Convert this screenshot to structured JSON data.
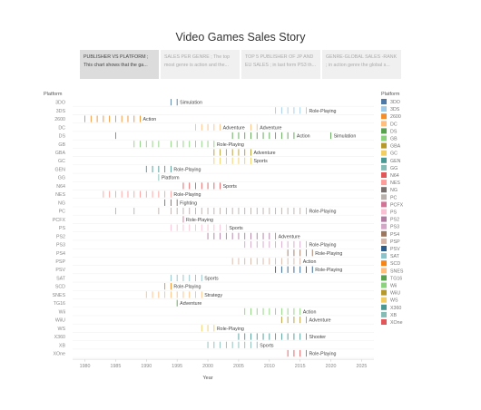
{
  "story": {
    "title": "Video Games Sales Story",
    "tabs": [
      {
        "line1": "PUBLISHER VS PLATFORM ;",
        "line2": "This chart shows that the ga...",
        "active": true
      },
      {
        "line1": "SALES PER GENRE ; The top",
        "line2": "most genre is action and the...",
        "active": false
      },
      {
        "line1": "TOP 5 PUBLISHER OF JP AND",
        "line2": "EU SALES ; in last form PS3 th...",
        "active": false
      },
      {
        "line1": "GENRE-GLOBAL SALES -RANK",
        "line2": "; in action genre the global s...",
        "active": false
      }
    ]
  },
  "chart_data": {
    "type": "strip",
    "ylabel": "Platform",
    "xlabel": "Year",
    "xlim": [
      1978,
      2027
    ],
    "xticks": [
      1980,
      1985,
      1990,
      1995,
      2000,
      2005,
      2010,
      2015,
      2020,
      2025
    ],
    "legend_title": "Platform",
    "rows": [
      {
        "platform": "3DO",
        "color": "#4e79a7",
        "years": [
          1994,
          1995
        ],
        "label_year": 1995,
        "label": "Simulation"
      },
      {
        "platform": "3DS",
        "color": "#a0cbe8",
        "years": [
          2011,
          2012,
          2013,
          2014,
          2015,
          2016
        ],
        "label_year": 2016,
        "label": "Role-Playing"
      },
      {
        "platform": "2600",
        "color": "#f28e2b",
        "years": [
          1980,
          1981,
          1982,
          1983,
          1984,
          1985,
          1986,
          1987,
          1988,
          1989
        ],
        "label_year": 1989,
        "label": "Action"
      },
      {
        "platform": "DC",
        "color": "#ffbe7d",
        "years": [
          1998,
          1999,
          2000,
          2001,
          2002,
          2007,
          2008
        ],
        "label_year": 2002,
        "label": "Adventure",
        "label2_year": 2008,
        "label2": "Adventure"
      },
      {
        "platform": "DS",
        "color": "#59a14f",
        "years": [
          1985,
          2004,
          2005,
          2006,
          2007,
          2008,
          2009,
          2010,
          2011,
          2012,
          2013,
          2014,
          2020
        ],
        "label_year": 2014,
        "label": "Action",
        "label2_year": 2020,
        "label2": "Simulation"
      },
      {
        "platform": "GB",
        "color": "#8cd17d",
        "years": [
          1988,
          1989,
          1990,
          1991,
          1992,
          1994,
          1995,
          1996,
          1997,
          1998,
          1999,
          2000,
          2001
        ],
        "label_year": 2001,
        "label": "Role-Playing"
      },
      {
        "platform": "GBA",
        "color": "#b6992d",
        "years": [
          2001,
          2002,
          2003,
          2004,
          2005,
          2006,
          2007
        ],
        "label_year": 2007,
        "label": "Adventure"
      },
      {
        "platform": "GC",
        "color": "#f1ce63",
        "years": [
          2001,
          2002,
          2003,
          2004,
          2005,
          2006,
          2007
        ],
        "label_year": 2007,
        "label": "Sports"
      },
      {
        "platform": "GEN",
        "color": "#499894",
        "years": [
          1990,
          1991,
          1992,
          1993,
          1994
        ],
        "label_year": 1994,
        "label": "Role-Playing"
      },
      {
        "platform": "GG",
        "color": "#86bcb6",
        "years": [
          1992
        ],
        "label_year": 1992,
        "label": "Platform"
      },
      {
        "platform": "N64",
        "color": "#e15759",
        "years": [
          1996,
          1997,
          1998,
          1999,
          2000,
          2001,
          2002
        ],
        "label_year": 2002,
        "label": "Sports"
      },
      {
        "platform": "NES",
        "color": "#ff9d9a",
        "years": [
          1983,
          1984,
          1985,
          1986,
          1987,
          1988,
          1989,
          1990,
          1991,
          1992,
          1993,
          1994
        ],
        "label_year": 1994,
        "label": "Role-Playing"
      },
      {
        "platform": "NG",
        "color": "#79706e",
        "years": [
          1993,
          1994,
          1995
        ],
        "label_year": 1995,
        "label": "Fighting"
      },
      {
        "platform": "PC",
        "color": "#bab0ac",
        "years": [
          1985,
          1988,
          1992,
          1994,
          1995,
          1996,
          1997,
          1998,
          1999,
          2000,
          2001,
          2002,
          2003,
          2004,
          2005,
          2006,
          2007,
          2008,
          2009,
          2010,
          2011,
          2012,
          2013,
          2014,
          2015,
          2016
        ],
        "label_year": 2016,
        "label": "Role-Playing"
      },
      {
        "platform": "PCFX",
        "color": "#d37295",
        "years": [
          1996
        ],
        "label_year": 1996,
        "label": "Role-Playing"
      },
      {
        "platform": "PS",
        "color": "#fabfd2",
        "years": [
          1994,
          1995,
          1996,
          1997,
          1998,
          1999,
          2000,
          2001,
          2002,
          2003
        ],
        "label_year": 2003,
        "label": "Sports"
      },
      {
        "platform": "PS2",
        "color": "#b07aa1",
        "years": [
          2000,
          2001,
          2002,
          2003,
          2004,
          2005,
          2006,
          2007,
          2008,
          2009,
          2010,
          2011
        ],
        "label_year": 2011,
        "label": "Adventure"
      },
      {
        "platform": "PS3",
        "color": "#d4a6c8",
        "years": [
          2006,
          2007,
          2008,
          2009,
          2010,
          2011,
          2012,
          2013,
          2014,
          2015,
          2016
        ],
        "label_year": 2016,
        "label": "Role-Playing"
      },
      {
        "platform": "PS4",
        "color": "#9d7660",
        "years": [
          2013,
          2014,
          2015,
          2016,
          2017
        ],
        "label_year": 2017,
        "label": "Role-Playing"
      },
      {
        "platform": "PSP",
        "color": "#d7b5a6",
        "years": [
          2004,
          2005,
          2006,
          2007,
          2008,
          2009,
          2010,
          2011,
          2012,
          2013,
          2014,
          2015
        ],
        "label_year": 2015,
        "label": "Action"
      },
      {
        "platform": "PSV",
        "color": "#2b5c8a",
        "years": [
          2011,
          2012,
          2013,
          2014,
          2015,
          2016,
          2017
        ],
        "label_year": 2017,
        "label": "Role-Playing"
      },
      {
        "platform": "SAT",
        "color": "#8cc2ca",
        "years": [
          1994,
          1995,
          1996,
          1997,
          1998,
          1999
        ],
        "label_year": 1999,
        "label": "Sports"
      },
      {
        "platform": "SCD",
        "color": "#f58518",
        "years": [
          1993,
          1994
        ],
        "label_year": 1994,
        "label": "Role-Playing"
      },
      {
        "platform": "SNES",
        "color": "#ffbe7d",
        "years": [
          1990,
          1991,
          1992,
          1993,
          1994,
          1995,
          1996,
          1997,
          1998,
          1999
        ],
        "label_year": 1999,
        "label": "Strategy"
      },
      {
        "platform": "TG16",
        "color": "#59a14f",
        "years": [
          1995
        ],
        "label_year": 1995,
        "label": "Adventure"
      },
      {
        "platform": "Wii",
        "color": "#8cd17d",
        "years": [
          2006,
          2007,
          2008,
          2009,
          2010,
          2011,
          2012,
          2013,
          2014,
          2015
        ],
        "label_year": 2015,
        "label": "Action"
      },
      {
        "platform": "WiiU",
        "color": "#b6992d",
        "years": [
          2012,
          2013,
          2014,
          2015,
          2016
        ],
        "label_year": 2016,
        "label": "Adventure"
      },
      {
        "platform": "WS",
        "color": "#f1ce63",
        "years": [
          1999,
          2000,
          2001
        ],
        "label_year": 2001,
        "label": "Role-Playing"
      },
      {
        "platform": "X360",
        "color": "#499894",
        "years": [
          2005,
          2006,
          2007,
          2008,
          2009,
          2010,
          2011,
          2012,
          2013,
          2014,
          2015,
          2016
        ],
        "label_year": 2016,
        "label": "Shooter"
      },
      {
        "platform": "XB",
        "color": "#86bcb6",
        "years": [
          2000,
          2001,
          2002,
          2003,
          2004,
          2005,
          2006,
          2007,
          2008
        ],
        "label_year": 2008,
        "label": "Sports"
      },
      {
        "platform": "XOne",
        "color": "#e15759",
        "years": [
          2013,
          2014,
          2015,
          2016
        ],
        "label_year": 2016,
        "label": "Role-Playing"
      }
    ]
  }
}
